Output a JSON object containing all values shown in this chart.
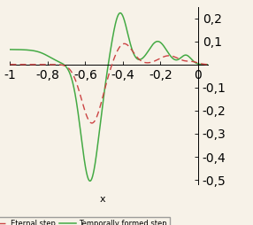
{
  "xlim": [
    -1.0,
    0.05
  ],
  "ylim": [
    -0.52,
    0.25
  ],
  "xticks": [
    -1.0,
    -0.8,
    -0.6,
    -0.4,
    -0.2,
    0.0
  ],
  "xtick_labels": [
    "-1",
    "-0,8",
    "-0,6",
    "-0,4",
    "-0,2",
    "0"
  ],
  "yticks": [
    -0.5,
    -0.4,
    -0.3,
    -0.2,
    -0.1,
    0.1,
    0.2
  ],
  "ytick_labels": [
    "-0,5",
    "-0,4",
    "-0,3",
    "-0,2",
    "-0,1",
    "0,1",
    "0,2"
  ],
  "xlabel": "x",
  "eternal_color": "#cc4444",
  "temporal_color": "#44aa44",
  "background_color": "#f7f2e8",
  "legend_labels": [
    "Eternal step",
    "Temporally formed step"
  ]
}
